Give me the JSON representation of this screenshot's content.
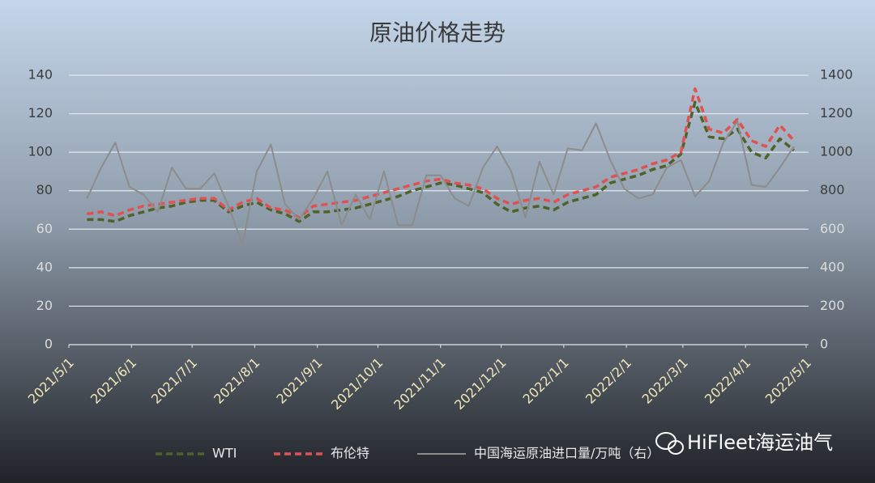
{
  "chart_data": {
    "type": "line",
    "title": "原油价格走势",
    "x": [
      "2021/5/10",
      "2021/5/17",
      "2021/5/24",
      "2021/5/31",
      "2021/6/7",
      "2021/6/14",
      "2021/6/21",
      "2021/6/28",
      "2021/7/5",
      "2021/7/12",
      "2021/7/19",
      "2021/7/26",
      "2021/8/2",
      "2021/8/9",
      "2021/8/16",
      "2021/8/23",
      "2021/8/30",
      "2021/9/6",
      "2021/9/13",
      "2021/9/20",
      "2021/9/27",
      "2021/10/4",
      "2021/10/11",
      "2021/10/18",
      "2021/10/25",
      "2021/11/1",
      "2021/11/8",
      "2021/11/15",
      "2021/11/22",
      "2021/11/29",
      "2021/12/6",
      "2021/12/13",
      "2021/12/20",
      "2021/12/27",
      "2022/1/3",
      "2022/1/10",
      "2022/1/17",
      "2022/1/24",
      "2022/1/31",
      "2022/2/7",
      "2022/2/14",
      "2022/2/21",
      "2022/2/28",
      "2022/3/7",
      "2022/3/14",
      "2022/3/21",
      "2022/3/28",
      "2022/4/4",
      "2022/4/11",
      "2022/4/18",
      "2022/4/25"
    ],
    "series": [
      {
        "name": "WTI",
        "color": "#4f6228",
        "dashed": true,
        "values": [
          65,
          65,
          64,
          67,
          69,
          71,
          72,
          74,
          75,
          75,
          69,
          72,
          74,
          70,
          68,
          64,
          69,
          69,
          70,
          71,
          73,
          75,
          77,
          80,
          82,
          84,
          83,
          81,
          79,
          73,
          69,
          71,
          72,
          70,
          74,
          76,
          78,
          84,
          86,
          88,
          91,
          93,
          99,
          126,
          108,
          107,
          112,
          100,
          97,
          107,
          101
        ]
      },
      {
        "name": "布伦特",
        "color": "#e05252",
        "dashed": true,
        "values": [
          68,
          69,
          67,
          70,
          72,
          73,
          74,
          75,
          76,
          76,
          70,
          74,
          76,
          71,
          70,
          66,
          72,
          73,
          74,
          75,
          77,
          79,
          81,
          83,
          85,
          86,
          84,
          83,
          81,
          76,
          73,
          75,
          76,
          74,
          78,
          80,
          82,
          87,
          89,
          91,
          94,
          96,
          100,
          133,
          112,
          110,
          117,
          106,
          103,
          114,
          106
        ]
      },
      {
        "name": "中国海运原油进口量/万吨（右）",
        "color": "#8c8c8c",
        "dashed": false,
        "axis": "y2",
        "values": [
          760,
          920,
          1050,
          820,
          780,
          690,
          920,
          810,
          810,
          890,
          720,
          520,
          900,
          1040,
          730,
          650,
          760,
          900,
          620,
          780,
          650,
          900,
          620,
          620,
          880,
          880,
          760,
          720,
          920,
          1030,
          900,
          660,
          950,
          780,
          1020,
          1010,
          1150,
          960,
          810,
          760,
          780,
          920,
          960,
          770,
          850,
          1050,
          1160,
          830,
          820,
          920,
          1030
        ]
      }
    ],
    "xlim": [
      "2021/5/1",
      "2022/5/1"
    ],
    "xticks": [
      "2021/5/1",
      "2021/6/1",
      "2021/7/1",
      "2021/8/1",
      "2021/9/1",
      "2021/10/1",
      "2021/11/1",
      "2021/12/1",
      "2022/1/1",
      "2022/2/1",
      "2022/3/1",
      "2022/4/1",
      "2022/5/1"
    ],
    "ylim": [
      0,
      140
    ],
    "yticks": [
      0,
      20,
      40,
      60,
      80,
      100,
      120,
      140
    ],
    "y2lim": [
      0,
      1400
    ],
    "y2ticks": [
      0,
      200,
      400,
      600,
      800,
      1000,
      1200,
      1400
    ],
    "grid": true,
    "legend": "bottom",
    "watermark": "HiFleet海运油气"
  }
}
